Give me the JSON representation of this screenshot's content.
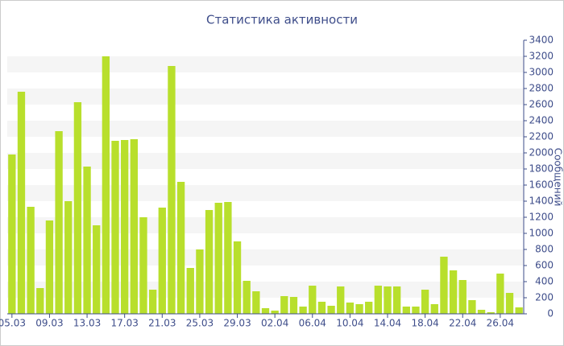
{
  "chart_data": {
    "type": "bar",
    "title": "Статистика активности",
    "y_label": "Сообщений",
    "categories": [
      "05.03",
      null,
      null,
      null,
      "09.03",
      null,
      null,
      null,
      "13.03",
      null,
      null,
      null,
      "17.03",
      null,
      null,
      null,
      "21.03",
      null,
      null,
      null,
      "25.03",
      null,
      null,
      null,
      "29.03",
      null,
      null,
      null,
      "02.04",
      null,
      null,
      null,
      "06.04",
      null,
      null,
      null,
      "10.04",
      null,
      null,
      null,
      "14.04",
      null,
      null,
      null,
      "18.04",
      null,
      null,
      null,
      "22.04",
      null,
      null,
      null,
      "26.04",
      null,
      null
    ],
    "values": [
      1980,
      2760,
      1330,
      320,
      1160,
      2270,
      1400,
      2630,
      1830,
      1100,
      3200,
      2150,
      2160,
      2170,
      1200,
      300,
      1320,
      3080,
      1640,
      570,
      800,
      1290,
      1380,
      1390,
      900,
      410,
      280,
      70,
      40,
      220,
      210,
      90,
      350,
      150,
      100,
      340,
      140,
      120,
      150,
      350,
      340,
      340,
      90,
      90,
      300,
      120,
      710,
      540,
      420,
      170,
      50,
      20,
      500,
      260,
      80
    ],
    "color": "#b8df2c",
    "ylim": [
      0,
      3400
    ],
    "yticks": [
      0,
      200,
      400,
      600,
      800,
      1000,
      1200,
      1400,
      1600,
      1800,
      2000,
      2200,
      2400,
      2600,
      2800,
      3000,
      3200,
      3400
    ],
    "grid": true
  }
}
